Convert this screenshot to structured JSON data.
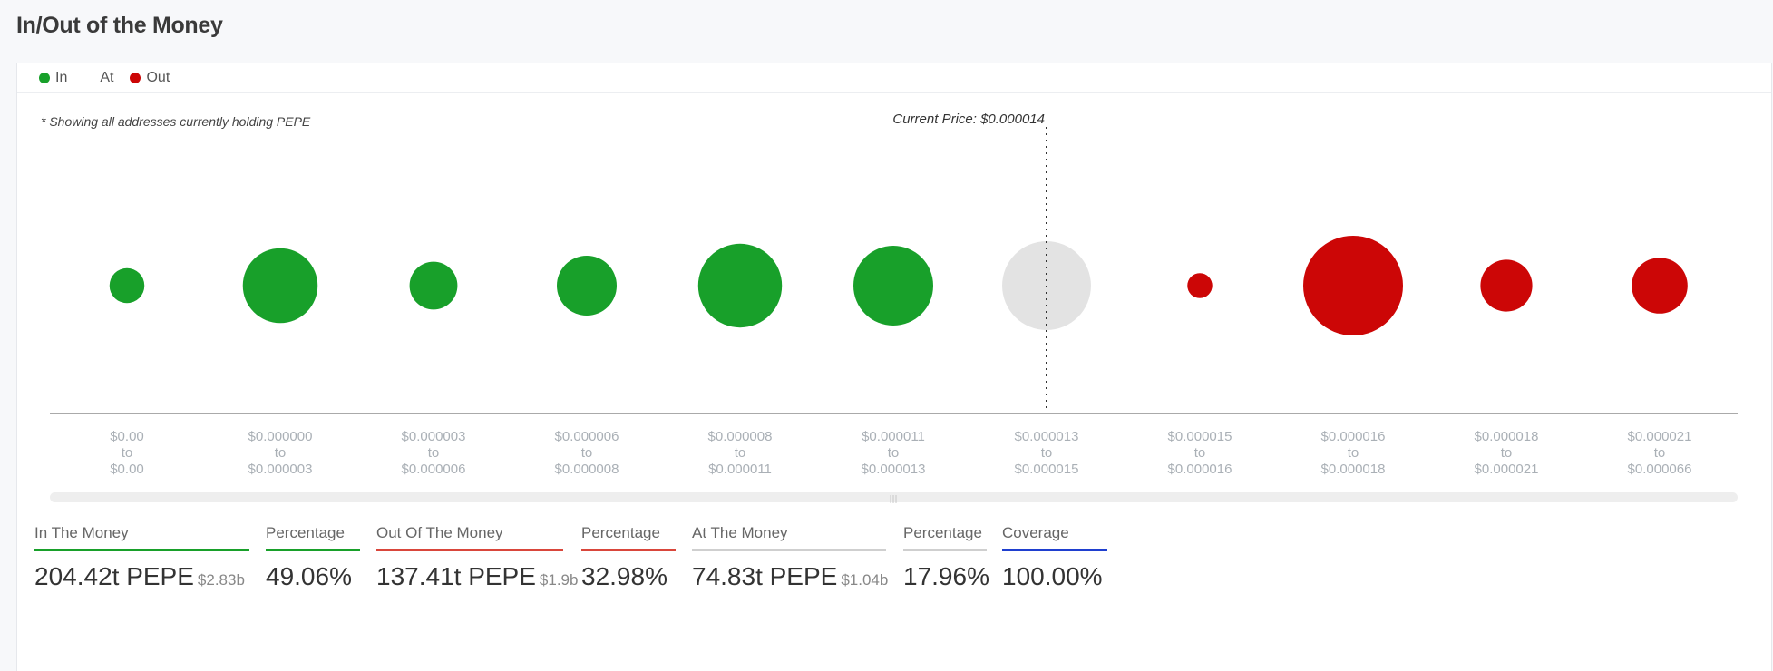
{
  "page": {
    "title": "In/Out of the Money"
  },
  "legend": [
    {
      "label": "In",
      "color": "#18a02a"
    },
    {
      "label": "At",
      "color": "#e3e3e3"
    },
    {
      "label": "Out",
      "color": "#cc0606"
    }
  ],
  "note": "* Showing all addresses currently holding PEPE",
  "chart_data": {
    "type": "scatter",
    "current_price_label": "Current Price: $0.000014",
    "current_price_index": 6,
    "buckets": [
      {
        "from": "$0.00",
        "to": "$0.00",
        "status": "in",
        "size": 0.35
      },
      {
        "from": "$0.000000",
        "to": "$0.000003",
        "status": "in",
        "size": 0.75
      },
      {
        "from": "$0.000003",
        "to": "$0.000006",
        "status": "in",
        "size": 0.48
      },
      {
        "from": "$0.000006",
        "to": "$0.000008",
        "status": "in",
        "size": 0.6
      },
      {
        "from": "$0.000008",
        "to": "$0.000011",
        "status": "in",
        "size": 0.84
      },
      {
        "from": "$0.000011",
        "to": "$0.000013",
        "status": "in",
        "size": 0.8
      },
      {
        "from": "$0.000013",
        "to": "$0.000015",
        "status": "at",
        "size": 0.89
      },
      {
        "from": "$0.000015",
        "to": "$0.000016",
        "status": "out",
        "size": 0.25
      },
      {
        "from": "$0.000016",
        "to": "$0.000018",
        "status": "out",
        "size": 1.0
      },
      {
        "from": "$0.000018",
        "to": "$0.000021",
        "status": "out",
        "size": 0.52
      },
      {
        "from": "$0.000021",
        "to": "$0.000066",
        "status": "out",
        "size": 0.56
      }
    ],
    "to_word": "to",
    "colors": {
      "in": "#18a02a",
      "at": "#e3e3e3",
      "out": "#cc0606"
    },
    "axis_color": "#555555"
  },
  "stats": [
    {
      "label": "In The Money",
      "value": "204.42t PEPE",
      "sub": "$2.83b",
      "color": "#18a02a"
    },
    {
      "label": "Percentage",
      "value": "49.06%",
      "sub": "",
      "color": "#18a02a"
    },
    {
      "label": "Out Of The Money",
      "value": "137.41t PEPE",
      "sub": "$1.9b",
      "color": "#d9463b"
    },
    {
      "label": "Percentage",
      "value": "32.98%",
      "sub": "",
      "color": "#d9463b"
    },
    {
      "label": "At The Money",
      "value": "74.83t PEPE",
      "sub": "$1.04b",
      "color": "#cfcfcf"
    },
    {
      "label": "Percentage",
      "value": "17.96%",
      "sub": "",
      "color": "#cfcfcf"
    },
    {
      "label": "Coverage",
      "value": "100.00%",
      "sub": "",
      "color": "#1f3fcf"
    }
  ]
}
